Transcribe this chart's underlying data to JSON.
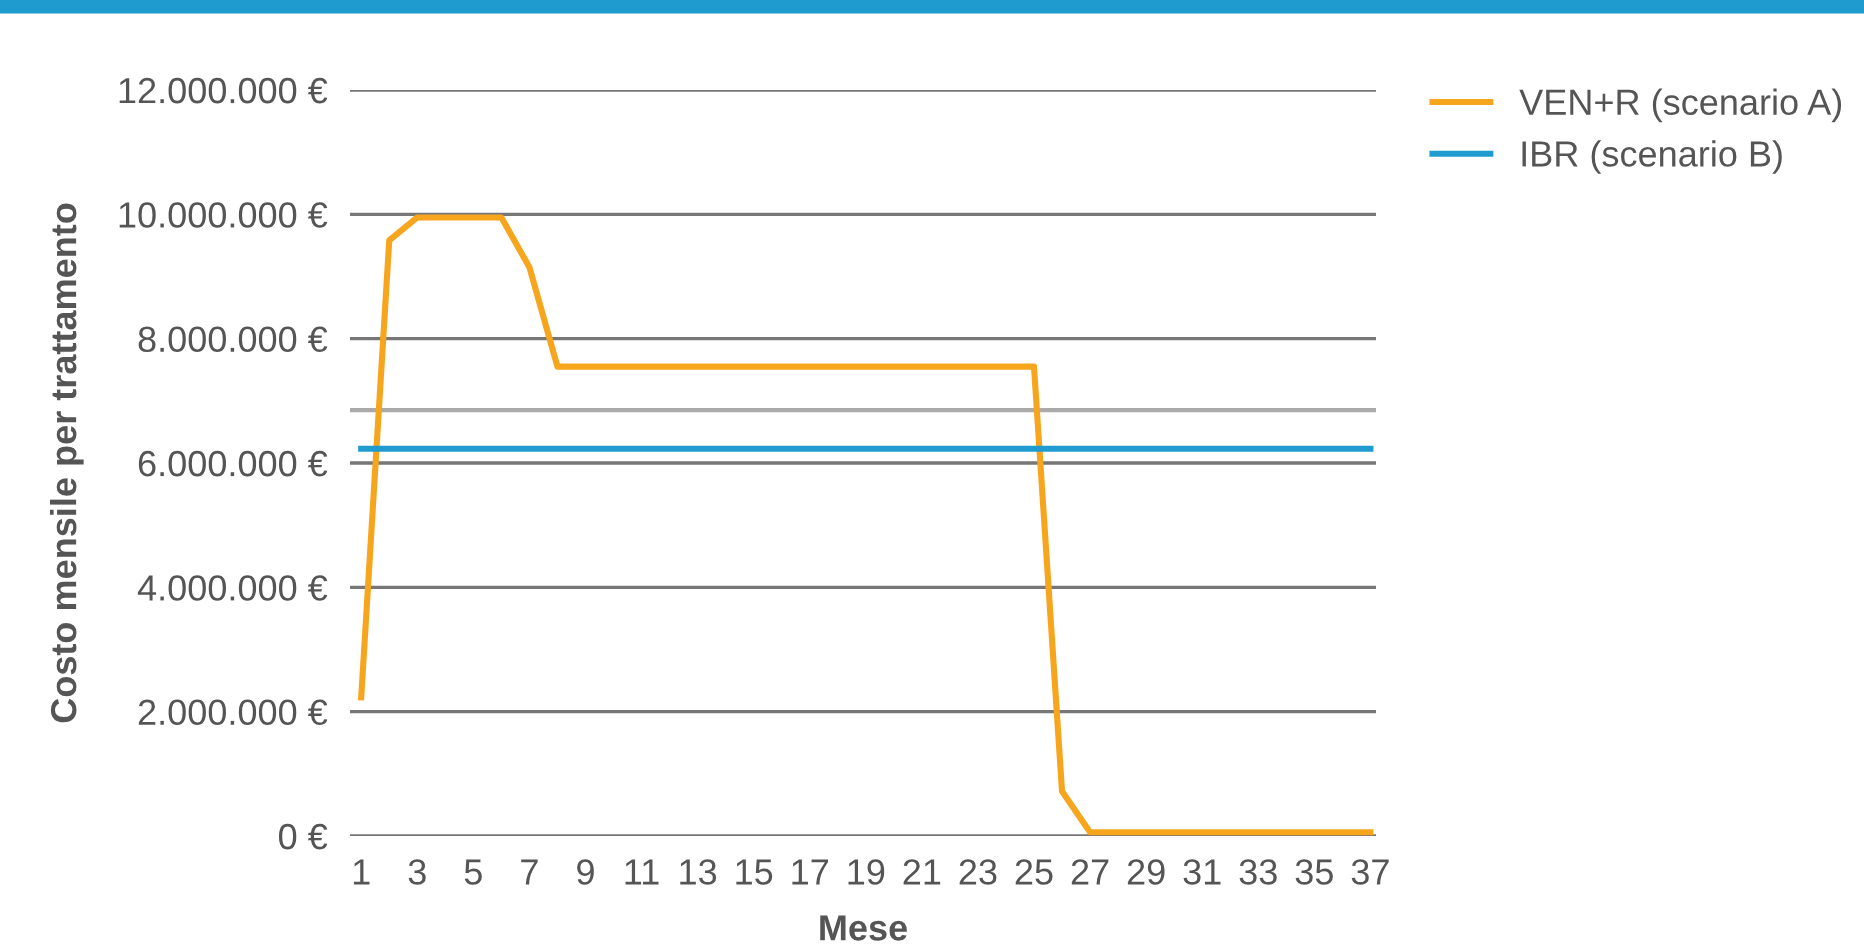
{
  "chart_data": {
    "type": "line",
    "xlabel": "Mese",
    "ylabel": "Costo mensile per trattamento",
    "x": [
      1,
      2,
      3,
      4,
      5,
      6,
      7,
      8,
      9,
      10,
      11,
      12,
      13,
      14,
      15,
      16,
      17,
      18,
      19,
      20,
      21,
      22,
      23,
      24,
      25,
      26,
      27,
      28,
      29,
      30,
      31,
      32,
      33,
      34,
      35,
      36,
      37
    ],
    "series": [
      {
        "name": "VEN+R (scenario A)",
        "color": "#f7a51c",
        "values": [
          2230000,
          9580000,
          9950000,
          9950000,
          9950000,
          9950000,
          9150000,
          7550000,
          7550000,
          7550000,
          7550000,
          7550000,
          7550000,
          7550000,
          7550000,
          7550000,
          7550000,
          7550000,
          7550000,
          7550000,
          7550000,
          7550000,
          7550000,
          7550000,
          7550000,
          720000,
          60000,
          60000,
          60000,
          60000,
          60000,
          60000,
          60000,
          60000,
          60000,
          60000,
          60000
        ]
      },
      {
        "name": "IBR (scenario B)",
        "color": "#1f9bcf",
        "values": [
          6230000,
          6230000,
          6230000,
          6230000,
          6230000,
          6230000,
          6230000,
          6230000,
          6230000,
          6230000,
          6230000,
          6230000,
          6230000,
          6230000,
          6230000,
          6230000,
          6230000,
          6230000,
          6230000,
          6230000,
          6230000,
          6230000,
          6230000,
          6230000,
          6230000,
          6230000,
          6230000,
          6230000,
          6230000,
          6230000,
          6230000,
          6230000,
          6230000,
          6230000,
          6230000,
          6230000,
          6230000
        ]
      }
    ],
    "xlim": [
      0.6,
      37.2
    ],
    "xticks": [
      1,
      3,
      5,
      7,
      9,
      11,
      13,
      15,
      17,
      19,
      21,
      23,
      25,
      27,
      29,
      31,
      33,
      35,
      37
    ],
    "ylim": [
      0,
      12000000
    ],
    "yticks": [
      {
        "value": 0,
        "label": "0 €"
      },
      {
        "value": 2000000,
        "label": "2.000.000 €"
      },
      {
        "value": 4000000,
        "label": "4.000.000 €"
      },
      {
        "value": 6000000,
        "label": "6.000.000 €"
      },
      {
        "value": 8000000,
        "label": "8.000.000 €"
      },
      {
        "value": 10000000,
        "label": "10.000.000 €"
      },
      {
        "value": 12000000,
        "label": "12.000.000 €"
      }
    ],
    "ref_lines": [
      {
        "axis": "y",
        "value": 6850000,
        "color": "#aaaaaa"
      }
    ],
    "grid": "y",
    "legend": "top right",
    "marker": "none",
    "line_style": "solid"
  }
}
